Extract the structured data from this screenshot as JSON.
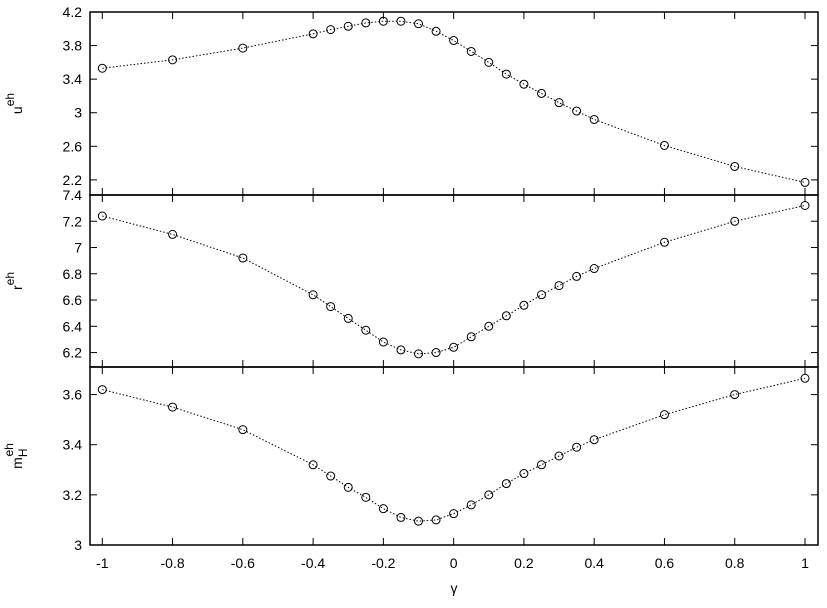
{
  "chart_data": [
    {
      "type": "line",
      "ylabel": {
        "base": "u",
        "sup": "eh"
      },
      "x": [
        -1,
        -0.8,
        -0.6,
        -0.4,
        -0.35,
        -0.3,
        -0.25,
        -0.2,
        -0.15,
        -0.1,
        -0.05,
        0,
        0.05,
        0.1,
        0.15,
        0.2,
        0.25,
        0.3,
        0.35,
        0.4,
        0.6,
        0.8,
        1
      ],
      "series": [
        {
          "color": "#000000",
          "values": [
            3.53,
            3.63,
            3.77,
            3.94,
            3.99,
            4.03,
            4.07,
            4.09,
            4.09,
            4.06,
            3.97,
            3.86,
            3.73,
            3.6,
            3.46,
            3.34,
            3.23,
            3.12,
            3.02,
            2.92,
            2.61,
            2.36,
            2.17
          ]
        }
      ],
      "xlim": [
        -1.035,
        1.037
      ],
      "ylim": [
        2.02,
        4.2
      ],
      "yticks": [
        2.2,
        2.6,
        3,
        3.4,
        3.8,
        4.2
      ]
    },
    {
      "type": "line",
      "ylabel": {
        "base": "r",
        "sup": "eh"
      },
      "x": [
        -1,
        -0.8,
        -0.6,
        -0.4,
        -0.35,
        -0.3,
        -0.25,
        -0.2,
        -0.15,
        -0.1,
        -0.05,
        0,
        0.05,
        0.1,
        0.15,
        0.2,
        0.25,
        0.3,
        0.35,
        0.4,
        0.6,
        0.8,
        1
      ],
      "series": [
        {
          "color": "#000000",
          "values": [
            7.24,
            7.1,
            6.92,
            6.64,
            6.55,
            6.46,
            6.37,
            6.28,
            6.22,
            6.19,
            6.2,
            6.24,
            6.32,
            6.4,
            6.48,
            6.56,
            6.64,
            6.71,
            6.78,
            6.84,
            7.04,
            7.2,
            7.32
          ]
        }
      ],
      "xlim": [
        -1.035,
        1.037
      ],
      "ylim": [
        6.09,
        7.4
      ],
      "yticks": [
        6.2,
        6.4,
        6.6,
        6.8,
        7,
        7.2,
        7.4
      ]
    },
    {
      "type": "line",
      "ylabel": {
        "base": "m",
        "sub": "H",
        "sup": "eh"
      },
      "xlabel": "γ",
      "x": [
        -1,
        -0.8,
        -0.6,
        -0.4,
        -0.35,
        -0.3,
        -0.25,
        -0.2,
        -0.15,
        -0.1,
        -0.05,
        0,
        0.05,
        0.1,
        0.15,
        0.2,
        0.25,
        0.3,
        0.35,
        0.4,
        0.6,
        0.8,
        1
      ],
      "series": [
        {
          "color": "#000000",
          "values": [
            3.62,
            3.55,
            3.46,
            3.32,
            3.275,
            3.23,
            3.19,
            3.145,
            3.11,
            3.095,
            3.1,
            3.125,
            3.16,
            3.2,
            3.245,
            3.285,
            3.32,
            3.355,
            3.39,
            3.42,
            3.52,
            3.6,
            3.665
          ]
        }
      ],
      "xlim": [
        -1.035,
        1.037
      ],
      "xticks": [
        -1,
        -0.8,
        -0.6,
        -0.4,
        -0.2,
        0,
        0.2,
        0.4,
        0.6,
        0.8,
        1
      ],
      "ylim": [
        3.0,
        3.71
      ],
      "yticks": [
        3,
        3.2,
        3.4,
        3.6
      ]
    }
  ]
}
